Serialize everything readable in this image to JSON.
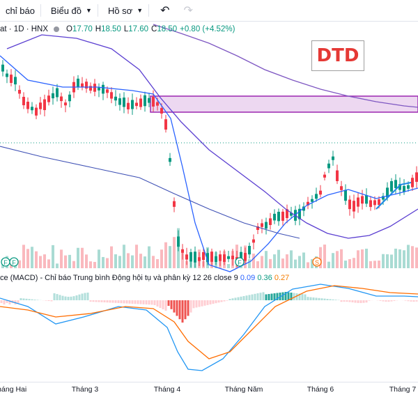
{
  "toolbar": {
    "indicators_label": "chỉ báo",
    "chart_label": "Biểu đồ",
    "profile_label": "Hồ sơ",
    "undo_icon": "undo-icon",
    "redo_icon": "redo-icon"
  },
  "legend": {
    "symbol": "at · 1D · HNX",
    "o_label": "O",
    "o": "17.70",
    "h_label": "H",
    "h": "18.50",
    "l_label": "L",
    "l": "17.60",
    "c_label": "C",
    "c": "18.50",
    "change": "+0.80 (+4.52%)"
  },
  "watermark": "DTD",
  "macd": {
    "title": "ce (MACD) - Chỉ báo Trung bình Động hội tụ và phân kỳ 12 26 close 9",
    "v1": "0.09",
    "v2": "0.36",
    "v3": "0.27"
  },
  "xaxis": {
    "labels": [
      "Tháng Hai",
      "Tháng 3",
      "Tháng 4",
      "Tháng Năm",
      "Tháng 6",
      "Tháng 7"
    ]
  },
  "markers": {
    "f": "F",
    "s": "S"
  },
  "colors": {
    "up": "#089981",
    "down": "#f23645",
    "ma_fast": "#2962ff",
    "ma_slow": "#5b3fd1",
    "zone": "#9c27b0",
    "macd_line": "#2196f3",
    "signal_line": "#ff6d00"
  }
}
